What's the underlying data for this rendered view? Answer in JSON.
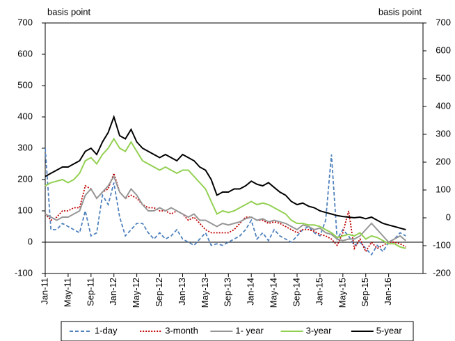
{
  "chart_data": {
    "type": "line",
    "y_label": "basis point",
    "y2_label": "basis point",
    "categories": [
      "Jan-11",
      null,
      null,
      null,
      "May-11",
      null,
      null,
      null,
      "Sep-11",
      null,
      null,
      null,
      "Jan-12",
      null,
      null,
      null,
      "May-12",
      null,
      null,
      null,
      "Sep-12",
      null,
      null,
      null,
      "Jan-13",
      null,
      null,
      null,
      "May-13",
      null,
      null,
      null,
      "Sep-13",
      null,
      null,
      null,
      "Jan-14",
      null,
      null,
      null,
      "May-14",
      null,
      null,
      null,
      "Sep-14",
      null,
      null,
      null,
      "Jan-15",
      null,
      null,
      null,
      "May-15",
      null,
      null,
      null,
      "Sep-15",
      null,
      null,
      null,
      "Jan-16",
      null,
      null,
      null
    ],
    "series": [
      {
        "name": "1-day",
        "color": "#4f81bd",
        "style": "dashed",
        "values": [
          300,
          40,
          40,
          60,
          50,
          40,
          30,
          100,
          20,
          30,
          150,
          120,
          190,
          80,
          20,
          40,
          60,
          60,
          30,
          10,
          30,
          10,
          20,
          40,
          10,
          0,
          -10,
          10,
          30,
          -10,
          -5,
          -10,
          0,
          10,
          20,
          40,
          70,
          10,
          30,
          5,
          40,
          20,
          10,
          0,
          20,
          40,
          50,
          30,
          20,
          70,
          280,
          10,
          40,
          20,
          -10,
          0,
          -20,
          -40,
          -10,
          -30,
          0,
          10,
          30,
          20
        ]
      },
      {
        "name": "3-month",
        "color": "#c00000",
        "style": "dotted",
        "values": [
          90,
          70,
          80,
          100,
          100,
          110,
          110,
          180,
          170,
          140,
          160,
          170,
          220,
          160,
          140,
          150,
          140,
          120,
          110,
          110,
          100,
          100,
          90,
          100,
          90,
          70,
          80,
          60,
          40,
          30,
          30,
          30,
          30,
          40,
          60,
          80,
          80,
          70,
          70,
          60,
          65,
          60,
          50,
          40,
          30,
          40,
          40,
          35,
          25,
          20,
          10,
          -10,
          30,
          100,
          -20,
          10,
          -30,
          0,
          -20,
          -10,
          0,
          0,
          -5,
          -15
        ]
      },
      {
        "name": "1- year",
        "color": "#969696",
        "style": "solid",
        "values": [
          90,
          80,
          70,
          80,
          80,
          90,
          100,
          150,
          170,
          140,
          160,
          180,
          210,
          160,
          140,
          170,
          150,
          120,
          100,
          100,
          110,
          100,
          110,
          100,
          90,
          80,
          90,
          70,
          70,
          60,
          50,
          60,
          55,
          60,
          65,
          75,
          80,
          70,
          75,
          65,
          70,
          65,
          60,
          50,
          40,
          55,
          50,
          40,
          45,
          30,
          25,
          10,
          5,
          10,
          10,
          20,
          40,
          60,
          40,
          20,
          0,
          10,
          20,
          5
        ]
      },
      {
        "name": "3-year",
        "color": "#92d050",
        "style": "solid",
        "values": [
          180,
          190,
          195,
          200,
          190,
          200,
          220,
          260,
          270,
          250,
          280,
          300,
          330,
          300,
          290,
          320,
          290,
          260,
          250,
          240,
          230,
          240,
          230,
          220,
          230,
          230,
          210,
          190,
          170,
          130,
          90,
          100,
          95,
          100,
          110,
          120,
          130,
          120,
          125,
          120,
          110,
          100,
          90,
          70,
          60,
          60,
          55,
          55,
          50,
          40,
          30,
          15,
          20,
          25,
          20,
          30,
          10,
          20,
          15,
          5,
          -5,
          -5,
          -15,
          -20
        ]
      },
      {
        "name": "5-year",
        "color": "#000000",
        "style": "solid",
        "values": [
          210,
          220,
          230,
          240,
          240,
          250,
          260,
          290,
          300,
          280,
          320,
          350,
          400,
          340,
          330,
          360,
          320,
          300,
          290,
          280,
          270,
          280,
          270,
          260,
          280,
          270,
          260,
          240,
          230,
          200,
          150,
          160,
          160,
          170,
          170,
          180,
          195,
          185,
          180,
          190,
          175,
          160,
          150,
          130,
          120,
          125,
          115,
          110,
          100,
          95,
          90,
          85,
          82,
          80,
          78,
          80,
          75,
          80,
          70,
          60,
          55,
          50,
          45,
          40
        ]
      }
    ],
    "ylim": [
      -100,
      700
    ],
    "yticks": [
      -100,
      0,
      100,
      200,
      300,
      400,
      500,
      600,
      700
    ],
    "y2lim": [
      -200,
      700
    ],
    "y2ticks": [
      -200,
      -100,
      0,
      100,
      200,
      300,
      400,
      500,
      600,
      700
    ],
    "legend": "bottom"
  }
}
